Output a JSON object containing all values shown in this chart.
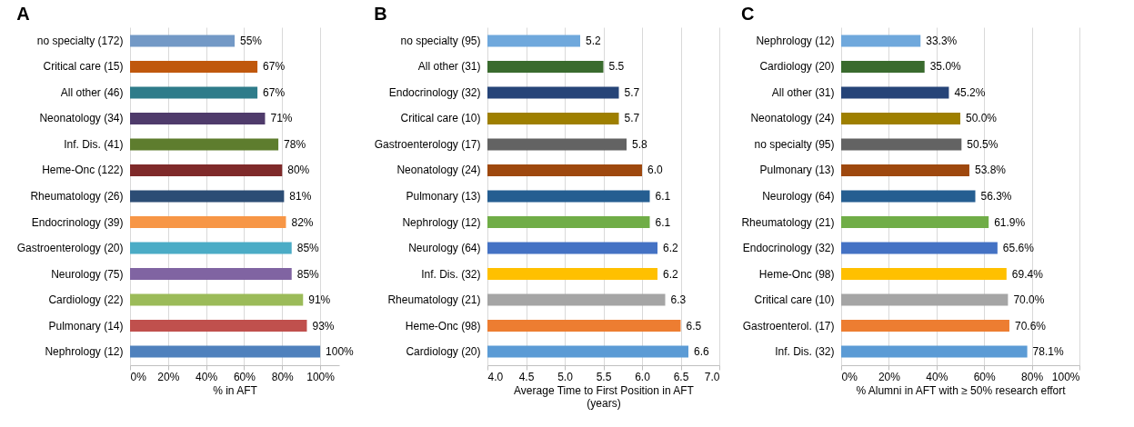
{
  "chart_data": [
    {
      "type": "bar",
      "title": "A",
      "orientation": "horizontal",
      "xlabel": "% in AFT",
      "grid": "x",
      "categories": [
        "no specialty (172)",
        "Critical care (15)",
        "All other (46)",
        "Neonatology (34)",
        "Inf. Dis. (41)",
        "Heme-Onc (122)",
        "Rheumatology (26)",
        "Endocrinology (39)",
        "Gastroenterology (20)",
        "Neurology (75)",
        "Cardiology (22)",
        "Pulmonary (14)",
        "Nephrology (12)"
      ],
      "values": [
        55,
        67,
        67,
        71,
        78,
        80,
        81,
        82,
        85,
        85,
        91,
        93,
        100
      ],
      "value_labels": [
        "55%",
        "67%",
        "67%",
        "71%",
        "78%",
        "80%",
        "81%",
        "82%",
        "85%",
        "85%",
        "91%",
        "93%",
        "100%"
      ],
      "colors": [
        "#7399c6",
        "#c0580d",
        "#2e7c8a",
        "#4f3b6b",
        "#5e7d2e",
        "#7f2a2a",
        "#2c4d75",
        "#f79646",
        "#4bacc6",
        "#8064a2",
        "#9bbb59",
        "#c0504d",
        "#4f81bd"
      ],
      "xlim": [
        0,
        110
      ],
      "xticks": [
        {
          "value": 0,
          "label": "0%"
        },
        {
          "value": 20,
          "label": "20%"
        },
        {
          "value": 40,
          "label": "40%"
        },
        {
          "value": 60,
          "label": "60%"
        },
        {
          "value": 80,
          "label": "80%"
        },
        {
          "value": 100,
          "label": "100%"
        }
      ]
    },
    {
      "type": "bar",
      "title": "B",
      "orientation": "horizontal",
      "xlabel": "Average Time to First Position in AFT\n(years)",
      "grid": "x",
      "categories": [
        "no specialty (95)",
        "All other (31)",
        "Endocrinology (32)",
        "Critical care (10)",
        "Gastroenterology (17)",
        "Neonatology (24)",
        "Pulmonary (13)",
        "Nephrology (12)",
        "Neurology (64)",
        "Inf. Dis. (32)",
        "Rheumatology (21)",
        "Heme-Onc (98)",
        "Cardiology (20)"
      ],
      "values": [
        5.2,
        5.5,
        5.7,
        5.7,
        5.8,
        6.0,
        6.1,
        6.1,
        6.2,
        6.2,
        6.3,
        6.5,
        6.6
      ],
      "value_labels": [
        "5.2",
        "5.5",
        "5.7",
        "5.7",
        "5.8",
        "6.0",
        "6.1",
        "6.1",
        "6.2",
        "6.2",
        "6.3",
        "6.5",
        "6.6"
      ],
      "colors": [
        "#6fa8dc",
        "#3a6b2e",
        "#264478",
        "#9e7f00",
        "#636363",
        "#9e480e",
        "#255e91",
        "#70ad47",
        "#4472c4",
        "#ffc000",
        "#a5a5a5",
        "#ed7d31",
        "#5b9bd5"
      ],
      "xlim": [
        4,
        7
      ],
      "xticks": [
        {
          "value": 4,
          "label": "4.0"
        },
        {
          "value": 4.5,
          "label": "4.5"
        },
        {
          "value": 5,
          "label": "5.0"
        },
        {
          "value": 5.5,
          "label": "5.5"
        },
        {
          "value": 6,
          "label": "6.0"
        },
        {
          "value": 6.5,
          "label": "6.5"
        },
        {
          "value": 7,
          "label": "7.0"
        }
      ]
    },
    {
      "type": "bar",
      "title": "C",
      "orientation": "horizontal",
      "xlabel": "% Alumni in AFT with ≥ 50% research effort",
      "grid": "x",
      "categories": [
        "Nephrology (12)",
        "Cardiology (20)",
        "All other (31)",
        "Neonatology (24)",
        "no specialty (95)",
        "Pulmonary (13)",
        "Neurology (64)",
        "Rheumatology (21)",
        "Endocrinology (32)",
        "Heme-Onc (98)",
        "Critical care (10)",
        "Gastroenterol. (17)",
        "Inf. Dis. (32)"
      ],
      "values": [
        33.3,
        35.0,
        45.2,
        50.0,
        50.5,
        53.8,
        56.3,
        61.9,
        65.6,
        69.4,
        70.0,
        70.6,
        78.1
      ],
      "value_labels": [
        "33.3%",
        "35.0%",
        "45.2%",
        "50.0%",
        "50.5%",
        "53.8%",
        "56.3%",
        "61.9%",
        "65.6%",
        "69.4%",
        "70.0%",
        "70.6%",
        "78.1%"
      ],
      "colors": [
        "#6fa8dc",
        "#3a6b2e",
        "#264478",
        "#9e7f00",
        "#636363",
        "#9e480e",
        "#255e91",
        "#70ad47",
        "#4472c4",
        "#ffc000",
        "#a5a5a5",
        "#ed7d31",
        "#5b9bd5"
      ],
      "xlim": [
        0,
        100
      ],
      "xticks": [
        {
          "value": 0,
          "label": "0%"
        },
        {
          "value": 20,
          "label": "20%"
        },
        {
          "value": 40,
          "label": "40%"
        },
        {
          "value": 60,
          "label": "60%"
        },
        {
          "value": 80,
          "label": "80%"
        },
        {
          "value": 100,
          "label": "100%"
        }
      ]
    }
  ]
}
